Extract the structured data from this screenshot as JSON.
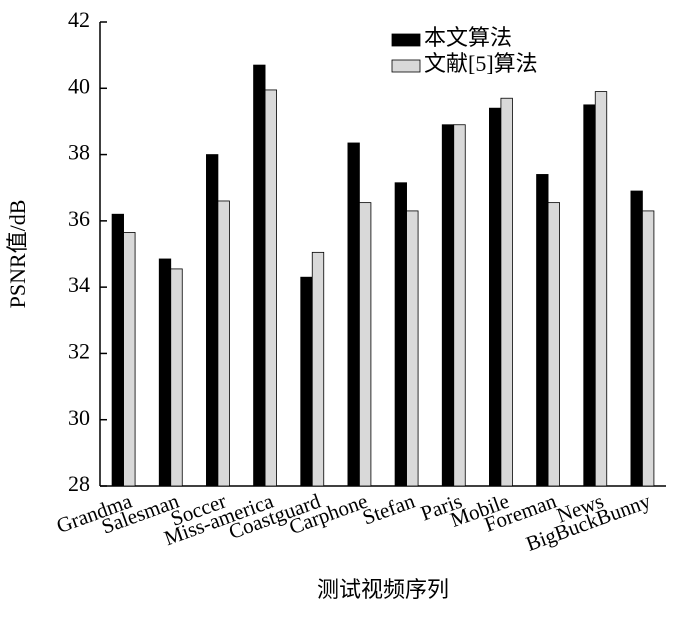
{
  "chart_data": {
    "type": "bar",
    "x_label": "测试视频序列",
    "y_label": "PSNR值/dB",
    "categories": [
      "Grandma",
      "Salesman",
      "Soccer",
      "Miss-america",
      "Coastguard",
      "Carphone",
      "Stefan",
      "Paris",
      "Mobile",
      "Foreman",
      "News",
      "BigBuckBunny"
    ],
    "series": [
      {
        "name": "本文算法",
        "color": "#000000",
        "values": [
          36.2,
          34.85,
          38.0,
          40.7,
          34.3,
          38.35,
          37.15,
          38.9,
          39.4,
          37.4,
          39.5,
          36.9
        ]
      },
      {
        "name": "文献[5]算法",
        "color": "#d9d9d9",
        "values": [
          35.65,
          34.55,
          36.6,
          39.95,
          35.05,
          36.55,
          36.3,
          38.9,
          39.7,
          36.55,
          39.9,
          36.3
        ]
      }
    ],
    "ylim": [
      28,
      42
    ],
    "yticks": [
      28,
      30,
      32,
      34,
      36,
      38,
      40,
      42
    ],
    "legend": "top-right"
  }
}
